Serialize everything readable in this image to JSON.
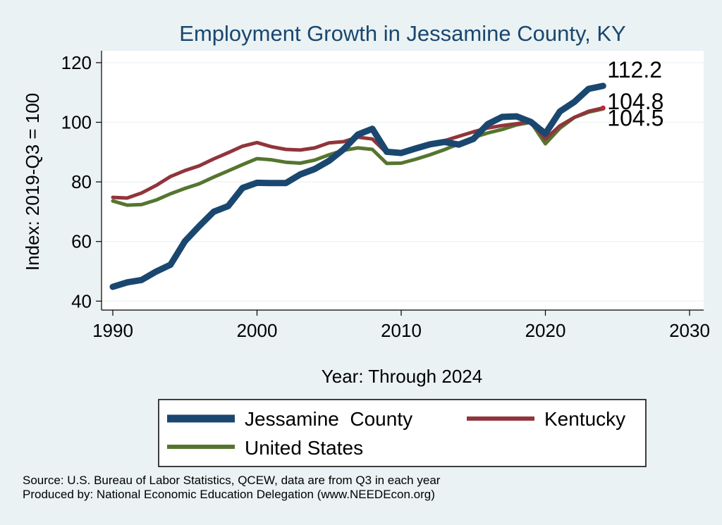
{
  "chart_data": {
    "type": "line",
    "title": "Employment Growth in Jessamine County, KY",
    "xlabel": "Year: Through 2024",
    "ylabel": "Index: 2019-Q3 = 100",
    "xlim": [
      1990,
      2030
    ],
    "ylim": [
      37,
      124
    ],
    "x_ticks": [
      1990,
      2000,
      2010,
      2020,
      2030
    ],
    "y_ticks": [
      40,
      60,
      80,
      100,
      120
    ],
    "grid": true,
    "legend_position": "bottom",
    "x": [
      1990,
      1991,
      1992,
      1993,
      1994,
      1995,
      1996,
      1997,
      1998,
      1999,
      2000,
      2001,
      2002,
      2003,
      2004,
      2005,
      2006,
      2007,
      2008,
      2009,
      2010,
      2011,
      2012,
      2013,
      2014,
      2015,
      2016,
      2017,
      2018,
      2019,
      2020,
      2021,
      2022,
      2023,
      2024
    ],
    "series": [
      {
        "name": "Jessamine  County",
        "color": "#1a476f",
        "values": [
          44.8,
          46.3,
          47.1,
          49.9,
          52.2,
          60.1,
          65.2,
          70.0,
          71.9,
          78.0,
          79.7,
          79.6,
          79.6,
          82.5,
          84.3,
          87.1,
          90.9,
          95.9,
          97.8,
          90.1,
          89.7,
          91.2,
          92.6,
          93.4,
          92.5,
          94.4,
          99.4,
          101.8,
          102.0,
          100.1,
          96.2,
          103.6,
          106.8,
          111.2,
          112.2
        ],
        "end_label": "112.2"
      },
      {
        "name": "Kentucky",
        "color": "#90353b",
        "values": [
          74.8,
          74.6,
          76.3,
          78.8,
          81.8,
          83.8,
          85.4,
          87.7,
          89.8,
          92.0,
          93.2,
          91.8,
          90.9,
          90.7,
          91.4,
          93.1,
          93.5,
          95.0,
          94.4,
          89.7,
          89.9,
          91.4,
          92.8,
          93.8,
          95.3,
          96.8,
          98.1,
          98.9,
          99.5,
          100.2,
          94.4,
          98.8,
          101.6,
          103.7,
          104.8
        ],
        "end_label": "104.8"
      },
      {
        "name": "United States",
        "color": "#55752f",
        "values": [
          73.6,
          72.2,
          72.4,
          73.9,
          76.0,
          77.8,
          79.4,
          81.6,
          83.7,
          85.8,
          87.8,
          87.4,
          86.6,
          86.3,
          87.3,
          89.1,
          90.6,
          91.4,
          90.9,
          86.2,
          86.3,
          87.6,
          89.1,
          90.8,
          92.8,
          94.9,
          96.4,
          97.6,
          99.1,
          100.0,
          92.8,
          98.0,
          101.6,
          103.4,
          104.5
        ],
        "end_label": "104.5"
      }
    ]
  },
  "footer": {
    "source_line": "Source: U.S. Bureau of Labor Statistics, QCEW, data are from Q3 in each year",
    "produced_line": "Produced by: National Economic Education Delegation (www.NEEDEcon.org)"
  },
  "colors": {
    "background": "#eaf2f3",
    "plot_background": "#ffffff",
    "title": "#1a476f",
    "grid": "#eaf2f3"
  }
}
